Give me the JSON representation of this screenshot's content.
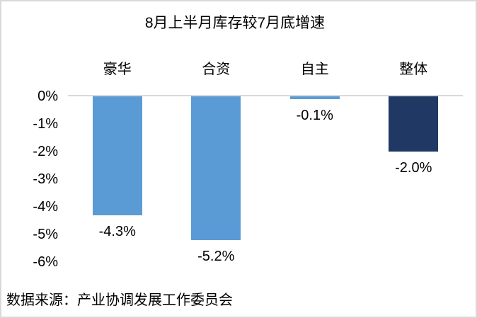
{
  "chart_data": {
    "type": "bar",
    "title": "8月上半月库存较7月底增速",
    "categories": [
      "豪华",
      "合资",
      "自主",
      "整体"
    ],
    "values": [
      -4.3,
      -5.2,
      -0.1,
      -2.0
    ],
    "data_labels": [
      "-4.3%",
      "-5.2%",
      "-0.1%",
      "-2.0%"
    ],
    "bar_colors": [
      "#5b9bd5",
      "#5b9bd5",
      "#5b9bd5",
      "#1f3864"
    ],
    "yticks": [
      "0%",
      "-1%",
      "-2%",
      "-3%",
      "-4%",
      "-5%",
      "-6%"
    ],
    "ylim": [
      -6,
      0
    ],
    "xlabel": "",
    "ylabel": "",
    "legend": "none",
    "grid": "zero-line-only",
    "category_axis_position": "top",
    "data_label_position": "outside-end-below"
  },
  "colors": {
    "bar_blue": "#5b9bd5",
    "bar_navy": "#1f3864",
    "gridline": "#d9d9d9",
    "frame_border": "#d9d9d9",
    "text": "#000000",
    "background": "#ffffff"
  },
  "source": "数据来源：产业协调发展工作委员会"
}
